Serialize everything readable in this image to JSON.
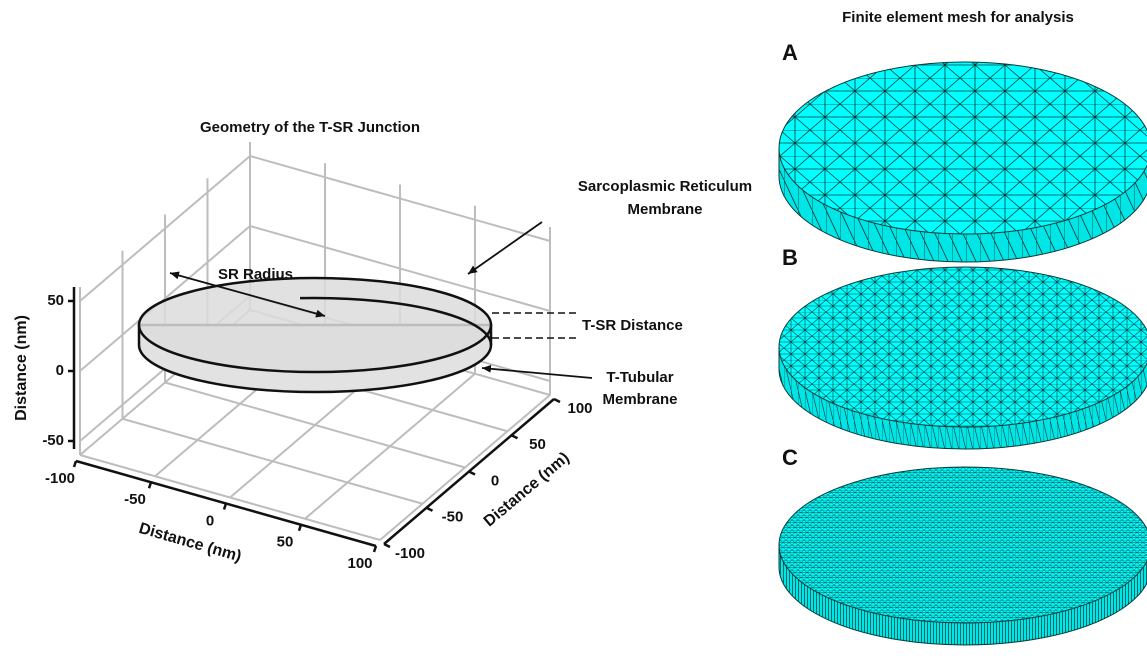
{
  "left_panel": {
    "title": "Geometry of the T-SR Junction",
    "vertical_axis": {
      "label": "Distance (nm)",
      "ticks": [
        -50,
        0,
        50
      ]
    },
    "front_axis": {
      "label": "Distance (nm)",
      "ticks": [
        -100,
        -50,
        0,
        50,
        100
      ]
    },
    "side_axis": {
      "label": "Distance (nm)",
      "ticks": [
        -100,
        -50,
        0,
        50,
        100
      ]
    },
    "annotations": {
      "sr_radius": "SR Radius",
      "sr_membrane": [
        "Sarcoplasmic Reticulum",
        "Membrane"
      ],
      "t_sr_distance": "T-SR Distance",
      "t_tubular_membrane": [
        "T-Tubular",
        "Membrane"
      ]
    }
  },
  "right_panel": {
    "title": "Finite element mesh for analysis",
    "panels": [
      "A",
      "B",
      "C"
    ]
  }
}
